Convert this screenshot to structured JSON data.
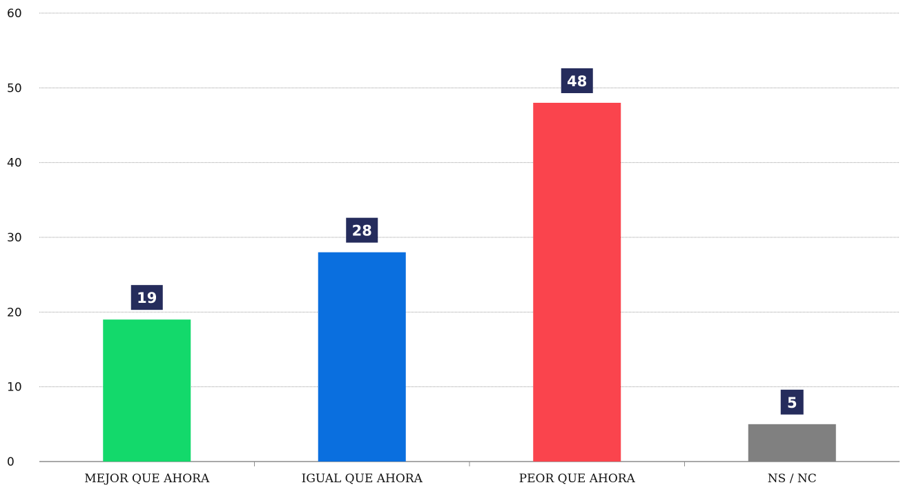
{
  "chart_data": {
    "type": "bar",
    "title": "",
    "xlabel": "",
    "ylabel": "",
    "categories": [
      "MEJOR QUE AHORA",
      "IGUAL QUE AHORA",
      "PEOR QUE AHORA",
      "NS / NC"
    ],
    "values": [
      19,
      28,
      48,
      5
    ],
    "bar_colors": [
      "#13d96b",
      "#0a6fdf",
      "#fa444d",
      "#808080"
    ],
    "data_label_color": "#252c5c",
    "ylim": [
      0,
      60
    ],
    "yticks": [
      "0",
      "10",
      "20",
      "30",
      "40",
      "50",
      "60"
    ],
    "grid": "horizontal dotted",
    "legend": "none"
  }
}
